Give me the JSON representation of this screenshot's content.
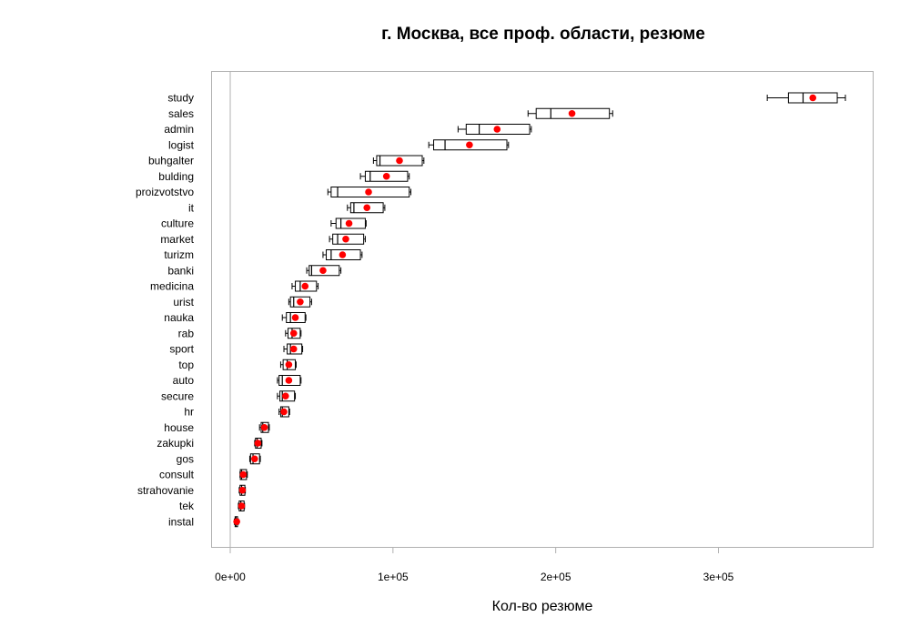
{
  "chart_data": {
    "type": "boxplot",
    "title": "г. Москва, все проф. области, резюме",
    "xlabel": "Кол-во резюме",
    "ylabel": "",
    "xlim": [
      -10000,
      395000
    ],
    "x_ticks": [
      {
        "value": 0,
        "label": "0e+00"
      },
      {
        "value": 100000,
        "label": "1e+05"
      },
      {
        "value": 200000,
        "label": "2e+05"
      },
      {
        "value": 300000,
        "label": "3e+05"
      }
    ],
    "reference_line": 0,
    "grid": false,
    "point_color": "#ff0000",
    "box_color": "#000000",
    "frame_color": "#b0b0b0",
    "categories": [
      "study",
      "sales",
      "admin",
      "logist",
      "buhgalter",
      "bulding",
      "proizvotstvo",
      "it",
      "culture",
      "market",
      "turizm",
      "banki",
      "medicina",
      "urist",
      "nauka",
      "rab",
      "sport",
      "top",
      "auto",
      "secure",
      "hr",
      "house",
      "zakupki",
      "gos",
      "consult",
      "strahovanie",
      "tek",
      "instal"
    ],
    "boxes": [
      {
        "name": "study",
        "min": 330000,
        "q1": 343000,
        "median": 352000,
        "q3": 373000,
        "max": 378000,
        "mean": 358000
      },
      {
        "name": "sales",
        "min": 183000,
        "q1": 188000,
        "median": 197000,
        "q3": 233000,
        "max": 235000,
        "mean": 210000
      },
      {
        "name": "admin",
        "min": 140000,
        "q1": 145000,
        "median": 153000,
        "q3": 184000,
        "max": 185000,
        "mean": 164000
      },
      {
        "name": "logist",
        "min": 122000,
        "q1": 125000,
        "median": 132000,
        "q3": 170000,
        "max": 171000,
        "mean": 147000
      },
      {
        "name": "buhgalter",
        "min": 88000,
        "q1": 90000,
        "median": 92000,
        "q3": 118000,
        "max": 119000,
        "mean": 104000
      },
      {
        "name": "bulding",
        "min": 80000,
        "q1": 83000,
        "median": 86000,
        "q3": 109000,
        "max": 110000,
        "mean": 96000
      },
      {
        "name": "proizvotstvo",
        "min": 60000,
        "q1": 62000,
        "median": 66000,
        "q3": 110000,
        "max": 111000,
        "mean": 85000
      },
      {
        "name": "it",
        "min": 72000,
        "q1": 74000,
        "median": 76000,
        "q3": 94000,
        "max": 95000,
        "mean": 84000
      },
      {
        "name": "culture",
        "min": 62000,
        "q1": 65000,
        "median": 68000,
        "q3": 83000,
        "max": 83500,
        "mean": 73000
      },
      {
        "name": "market",
        "min": 61000,
        "q1": 63000,
        "median": 66000,
        "q3": 82000,
        "max": 83000,
        "mean": 71000
      },
      {
        "name": "turizm",
        "min": 57000,
        "q1": 59000,
        "median": 62000,
        "q3": 80000,
        "max": 81000,
        "mean": 69000
      },
      {
        "name": "banki",
        "min": 47000,
        "q1": 48500,
        "median": 50000,
        "q3": 67000,
        "max": 68000,
        "mean": 57000
      },
      {
        "name": "medicina",
        "min": 38000,
        "q1": 40000,
        "median": 43000,
        "q3": 53000,
        "max": 54000,
        "mean": 46000
      },
      {
        "name": "urist",
        "min": 36000,
        "q1": 37000,
        "median": 39000,
        "q3": 49000,
        "max": 50000,
        "mean": 43000
      },
      {
        "name": "nauka",
        "min": 32000,
        "q1": 34500,
        "median": 37000,
        "q3": 46000,
        "max": 46500,
        "mean": 40000
      },
      {
        "name": "rab",
        "min": 34000,
        "q1": 35500,
        "median": 38000,
        "q3": 43000,
        "max": 43500,
        "mean": 39000
      },
      {
        "name": "sport",
        "min": 33000,
        "q1": 35000,
        "median": 37000,
        "q3": 44000,
        "max": 44500,
        "mean": 39000
      },
      {
        "name": "top",
        "min": 31000,
        "q1": 32500,
        "median": 35000,
        "q3": 40000,
        "max": 40500,
        "mean": 36000
      },
      {
        "name": "auto",
        "min": 29000,
        "q1": 30000,
        "median": 32000,
        "q3": 43000,
        "max": 43500,
        "mean": 36000
      },
      {
        "name": "secure",
        "min": 29000,
        "q1": 30500,
        "median": 32000,
        "q3": 39500,
        "max": 40000,
        "mean": 34000
      },
      {
        "name": "hr",
        "min": 30000,
        "q1": 31000,
        "median": 32000,
        "q3": 36000,
        "max": 36500,
        "mean": 33000
      },
      {
        "name": "house",
        "min": 18000,
        "q1": 19000,
        "median": 20000,
        "q3": 23500,
        "max": 24000,
        "mean": 21000
      },
      {
        "name": "zakupki",
        "min": 15000,
        "q1": 15500,
        "median": 16500,
        "q3": 19000,
        "max": 19500,
        "mean": 17000
      },
      {
        "name": "gos",
        "min": 12000,
        "q1": 12500,
        "median": 14000,
        "q3": 18000,
        "max": 18500,
        "mean": 15000
      },
      {
        "name": "consult",
        "min": 6000,
        "q1": 6200,
        "median": 7000,
        "q3": 10000,
        "max": 10500,
        "mean": 8000
      },
      {
        "name": "strahovanie",
        "min": 5500,
        "q1": 6000,
        "median": 7000,
        "q3": 9000,
        "max": 9300,
        "mean": 7500
      },
      {
        "name": "tek",
        "min": 5000,
        "q1": 5500,
        "median": 6500,
        "q3": 8500,
        "max": 8800,
        "mean": 7000
      },
      {
        "name": "instal",
        "min": 2500,
        "q1": 3000,
        "median": 3500,
        "q3": 4500,
        "max": 5000,
        "mean": 4000
      }
    ]
  }
}
